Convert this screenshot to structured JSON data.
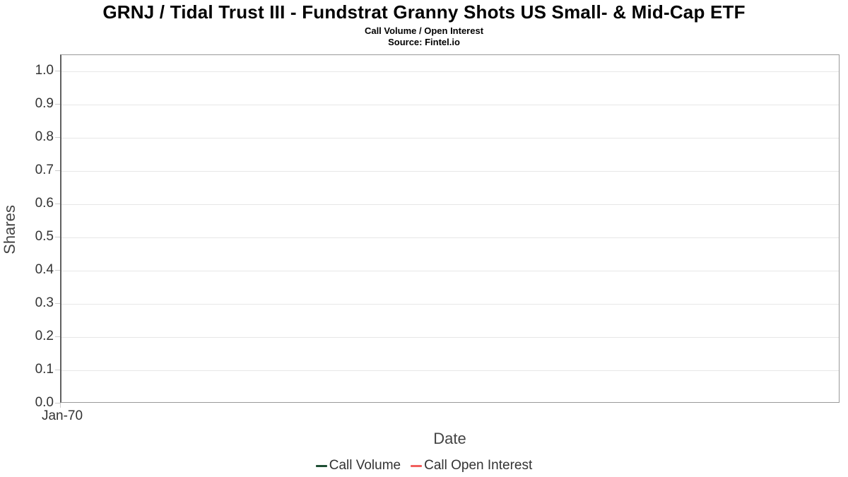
{
  "header": {
    "title": "GRNJ / Tidal Trust III - Fundstrat Granny Shots US Small- & Mid-Cap ETF",
    "subtitle": "Call Volume / Open Interest",
    "source": "Source: Fintel.io"
  },
  "chart_data": {
    "type": "line",
    "title": "GRNJ / Tidal Trust III - Fundstrat Granny Shots US Small- & Mid-Cap ETF",
    "subtitle": "Call Volume / Open Interest",
    "source": "Source: Fintel.io",
    "xlabel": "Date",
    "ylabel": "Shares",
    "ylim": [
      0.0,
      1.0
    ],
    "yticks": [
      "1.0",
      "0.9",
      "0.8",
      "0.7",
      "0.6",
      "0.5",
      "0.4",
      "0.3",
      "0.2",
      "0.1",
      "0.0"
    ],
    "xticks": [
      "Jan-70"
    ],
    "grid": true,
    "legend_position": "bottom",
    "series": [
      {
        "name": "Call Volume",
        "color": "#1e4e33",
        "x": [],
        "values": []
      },
      {
        "name": "Call Open Interest",
        "color": "#f15f5d",
        "x": [],
        "values": []
      }
    ]
  },
  "legend": {
    "items": [
      {
        "label": "Call Volume",
        "color": "#1e4e33"
      },
      {
        "label": "Call Open Interest",
        "color": "#f15f5d"
      }
    ]
  }
}
